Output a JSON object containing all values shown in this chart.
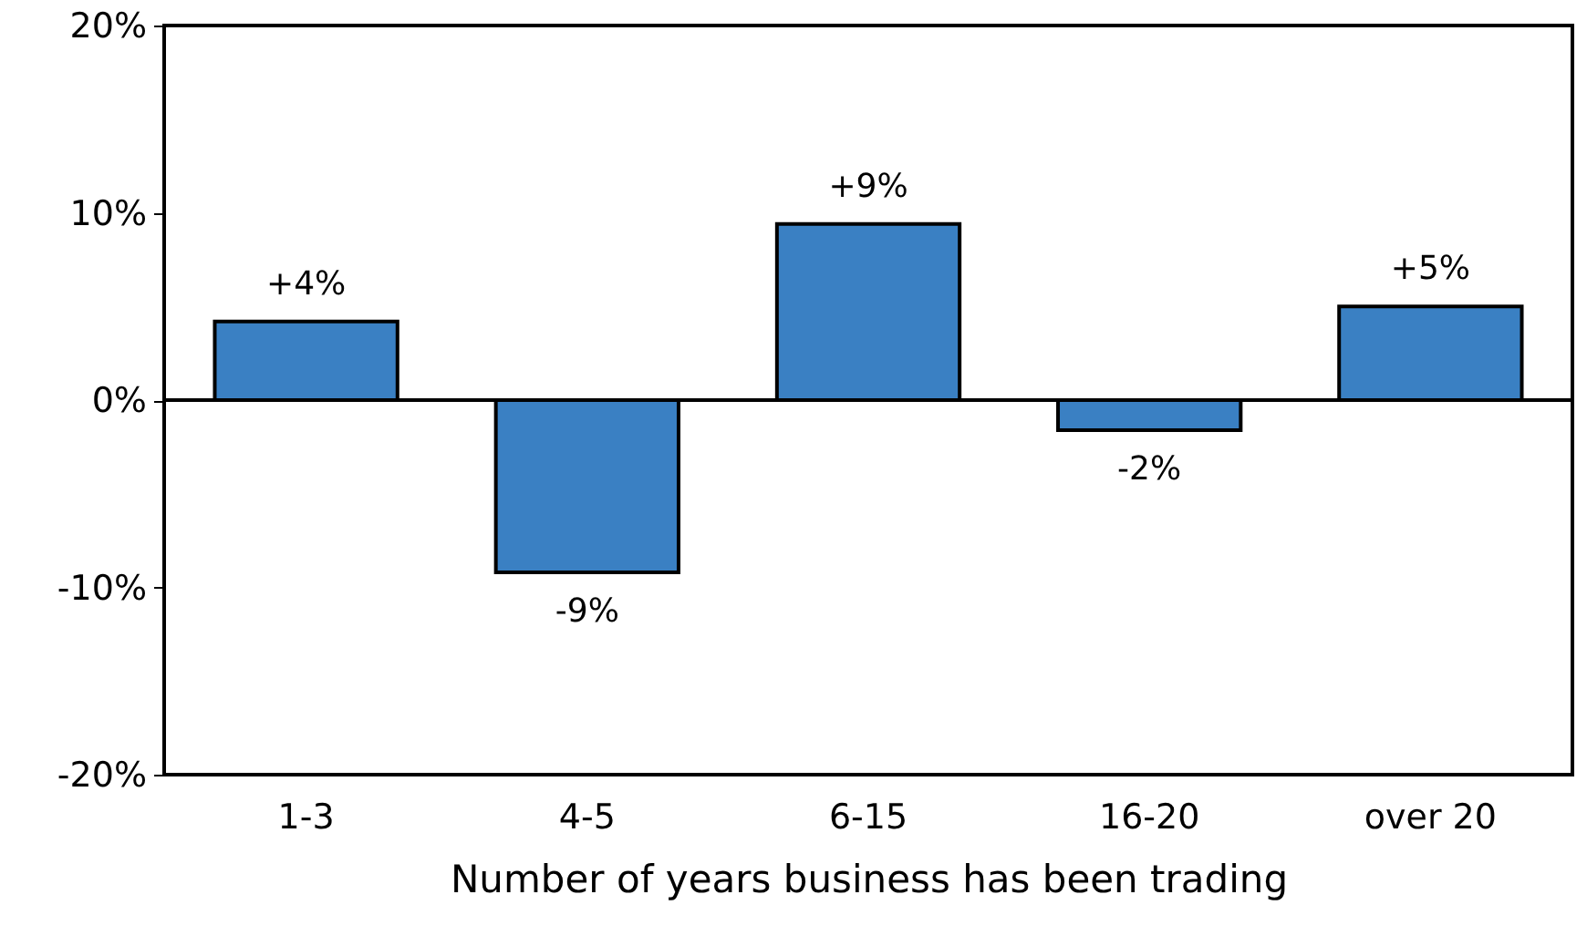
{
  "chart_data": {
    "type": "bar",
    "xlabel": "Number of years business has been trading",
    "categories": [
      "1-3",
      "4-5",
      "6-15",
      "16-20",
      "over 20"
    ],
    "values": [
      4.2,
      -9.2,
      9.4,
      -1.6,
      5.0
    ],
    "value_labels": [
      "+4%",
      "-9%",
      "+9%",
      "-2%",
      "+5%"
    ],
    "color": "#3a80c3",
    "ylim": [
      -20,
      20
    ],
    "yticks": [
      {
        "value": -20,
        "label": "-20%"
      },
      {
        "value": -10,
        "label": "-10%"
      },
      {
        "value": 0,
        "label": "0%"
      },
      {
        "value": 10,
        "label": "10%"
      },
      {
        "value": 20,
        "label": "20%"
      }
    ],
    "ref_lines": [
      {
        "axis": "y",
        "value": 0,
        "color": "#000000"
      }
    ],
    "grid": false
  }
}
